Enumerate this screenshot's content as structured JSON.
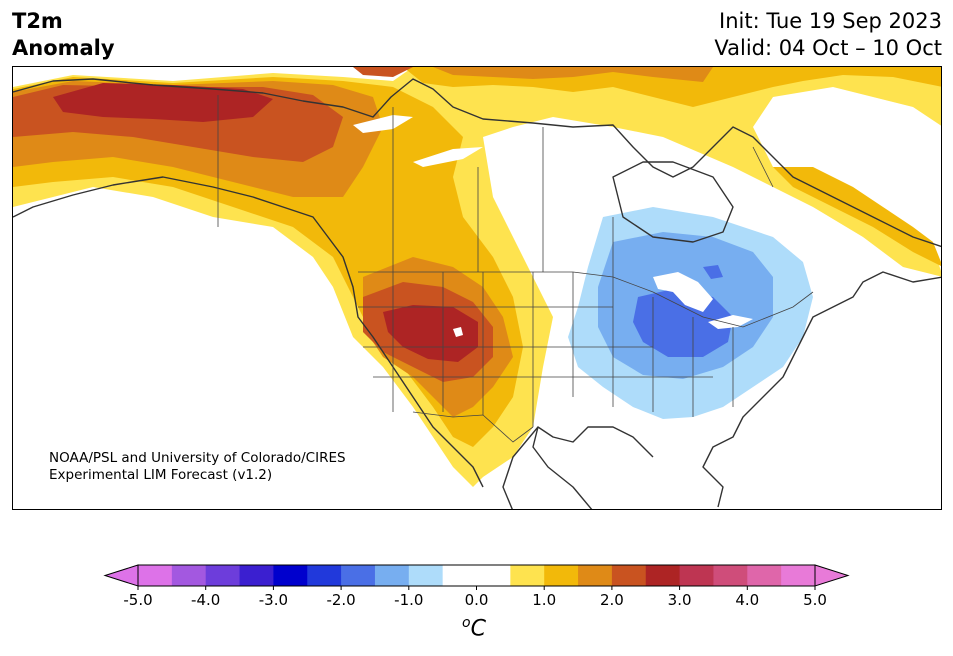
{
  "header": {
    "title_line1": "T2m",
    "title_line2": "Anomaly",
    "init_text": "Init: Tue 19 Sep 2023",
    "valid_text": "Valid: 04 Oct – 10 Oct"
  },
  "credit": {
    "line1": "NOAA/PSL and University of Colorado/CIRES",
    "line2": "Experimental LIM Forecast (v1.2)"
  },
  "colorbar": {
    "unit_base": "C",
    "unit_sup": "o",
    "tick_labels": [
      "-5.0",
      "-4.0",
      "-3.0",
      "-2.0",
      "-1.0",
      "0.0",
      "1.0",
      "2.0",
      "3.0",
      "4.0",
      "5.0"
    ],
    "colors": [
      "#dd72e8",
      "#a358e0",
      "#6d3ddb",
      "#3b1fd0",
      "#0000cd",
      "#2139db",
      "#4a6fe6",
      "#77aef0",
      "#aedcfa",
      "#ffffff",
      "#ffffff",
      "#fee34f",
      "#f2b90a",
      "#df8a17",
      "#c95320",
      "#ad2424",
      "#be3552",
      "#cf4d7a",
      "#df66aa",
      "#e87ad8"
    ],
    "under_color": "#dd72e8",
    "over_color": "#e87ad8"
  },
  "palette": {
    "yellow": "#fee34f",
    "gold": "#f2b90a",
    "orange": "#df8a17",
    "darkorange": "#c95320",
    "red": "#ad2424",
    "lightblue": "#aedcfa",
    "blue": "#77aef0",
    "midblue": "#4a6fe6",
    "border": "#333333"
  }
}
